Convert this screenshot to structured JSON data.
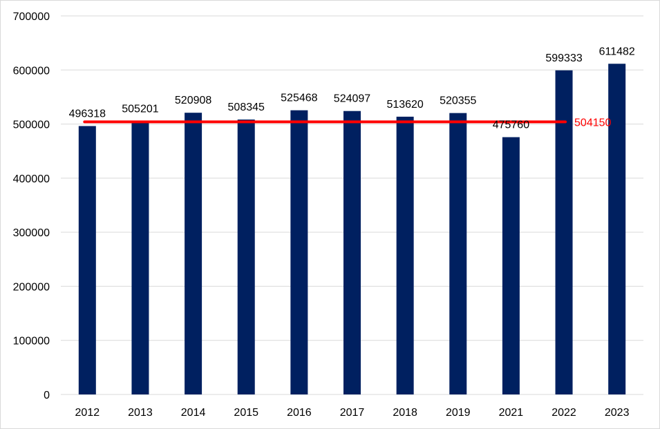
{
  "chart_data": {
    "type": "bar",
    "categories": [
      "2012",
      "2013",
      "2014",
      "2015",
      "2016",
      "2017",
      "2018",
      "2019",
      "2021",
      "2022",
      "2023"
    ],
    "values": [
      496318,
      505201,
      520908,
      508345,
      525468,
      524097,
      513620,
      520355,
      475760,
      599333,
      611482
    ],
    "data_labels": [
      "496318",
      "505201",
      "520908",
      "508345",
      "525468",
      "524097",
      "513620",
      "520355",
      "475760",
      "599333",
      "611482"
    ],
    "yticks": [
      0,
      100000,
      200000,
      300000,
      400000,
      500000,
      600000,
      700000
    ],
    "ytick_labels": [
      "0",
      "100000",
      "200000",
      "300000",
      "400000",
      "500000",
      "600000",
      "700000"
    ],
    "ylim": [
      0,
      700000
    ],
    "grid": true,
    "bar_color": "#002060",
    "reference_line": {
      "value": 504150,
      "label": "504150",
      "color": "#ff0000"
    }
  }
}
